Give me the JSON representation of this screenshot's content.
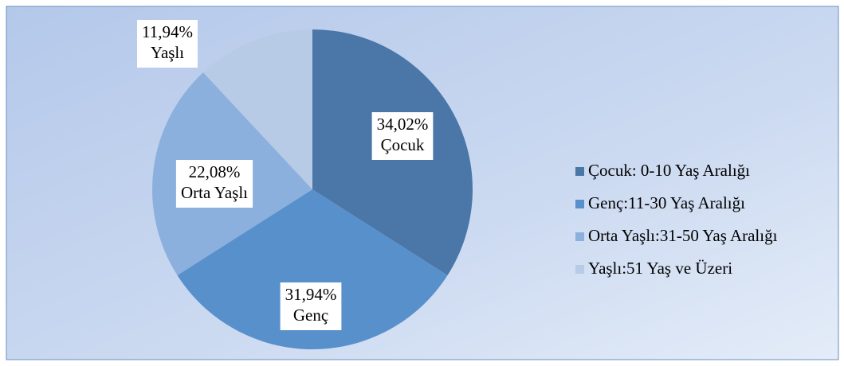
{
  "chart_data": {
    "type": "pie",
    "categories": [
      "Çocuk: 0-10 Yaş Aralığı",
      "Genç:11-30 Yaş Aralığı",
      "Orta Yaşlı:31-50 Yaş Aralığı",
      "Yaşlı:51 Yaş ve Üzeri"
    ],
    "values": [
      34.02,
      31.94,
      22.08,
      11.94
    ],
    "value_labels": [
      "34,02%",
      "31,94%",
      "22,08%",
      "11,94%"
    ],
    "slice_labels": [
      "Çocuk",
      "Genç",
      "Orta Yaşlı",
      "Yaşlı"
    ],
    "colors": [
      "#4a76a8",
      "#5890cc",
      "#8cb0dd",
      "#b7cbe7"
    ],
    "legend": "right"
  }
}
